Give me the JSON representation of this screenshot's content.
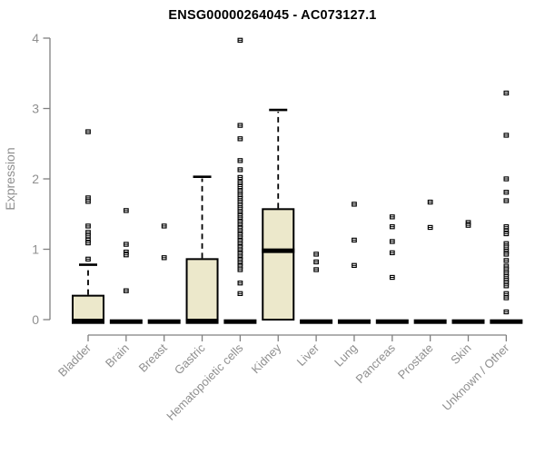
{
  "title": "ENSG00000264045 - AC073127.1",
  "colors": {
    "box_fill": "#ece8cb",
    "box_stroke": "#000000",
    "axis_line": "#808080",
    "tick_text": "#8f8f8f",
    "title_text": "#000000",
    "background": "#ffffff"
  },
  "chart_data": {
    "type": "boxplot",
    "title": "ENSG00000264045 - AC073127.1",
    "xlabel": "",
    "ylabel": "Expression",
    "ylim": [
      0,
      4
    ],
    "yticks": [
      0,
      1,
      2,
      3,
      4
    ],
    "grid": false,
    "legend": "none",
    "box_fill": "#ece8cb",
    "categories": [
      "Bladder",
      "Brain",
      "Breast",
      "Gastric",
      "Hematopoietic cells",
      "Kidney",
      "Liver",
      "Lung",
      "Pancreas",
      "Prostate",
      "Skin",
      "Unknown / Other"
    ],
    "series": [
      {
        "category": "Bladder",
        "box": {
          "low": 0,
          "q1": 0,
          "median": 0,
          "q3": 0.34,
          "high": 0.78
        },
        "outliers": [
          2.67,
          1.73,
          1.68,
          1.33,
          1.24,
          1.19,
          1.13,
          1.09,
          0.86
        ]
      },
      {
        "category": "Brain",
        "box": {
          "low": 0,
          "q1": 0,
          "median": 0,
          "q3": 0,
          "high": 0
        },
        "outliers": [
          1.55,
          1.07,
          0.96,
          0.92,
          0.41
        ]
      },
      {
        "category": "Breast",
        "box": {
          "low": 0,
          "q1": 0,
          "median": 0,
          "q3": 0,
          "high": 0
        },
        "outliers": [
          1.33,
          0.88
        ]
      },
      {
        "category": "Gastric",
        "box": {
          "low": 0,
          "q1": 0,
          "median": 0,
          "q3": 0.86,
          "high": 2.03
        },
        "outliers": []
      },
      {
        "category": "Hematopoietic cells",
        "box": {
          "low": 0,
          "q1": 0,
          "median": 0,
          "q3": 0,
          "high": 0
        },
        "outliers": [
          3.97,
          2.76,
          2.57,
          2.26,
          2.13,
          2.02,
          1.95,
          1.89,
          1.83,
          1.77,
          1.72,
          1.67,
          1.62,
          1.57,
          1.52,
          1.48,
          1.43,
          1.39,
          1.34,
          1.3,
          1.25,
          1.21,
          1.16,
          1.12,
          1.07,
          1.03,
          0.98,
          0.94,
          0.89,
          0.85,
          0.8,
          0.76,
          0.71,
          0.52,
          0.37
        ]
      },
      {
        "category": "Kidney",
        "box": {
          "low": 0,
          "q1": 0,
          "median": 0.98,
          "q3": 1.57,
          "high": 2.98
        },
        "outliers": []
      },
      {
        "category": "Liver",
        "box": {
          "low": 0,
          "q1": 0,
          "median": 0,
          "q3": 0,
          "high": 0
        },
        "outliers": [
          0.93,
          0.82,
          0.71
        ]
      },
      {
        "category": "Lung",
        "box": {
          "low": 0,
          "q1": 0,
          "median": 0,
          "q3": 0,
          "high": 0
        },
        "outliers": [
          1.64,
          1.13,
          0.77
        ]
      },
      {
        "category": "Pancreas",
        "box": {
          "low": 0,
          "q1": 0,
          "median": 0,
          "q3": 0,
          "high": 0
        },
        "outliers": [
          1.46,
          1.32,
          1.11,
          0.95,
          0.6
        ]
      },
      {
        "category": "Prostate",
        "box": {
          "low": 0,
          "q1": 0,
          "median": 0,
          "q3": 0,
          "high": 0
        },
        "outliers": [
          1.67,
          1.31
        ]
      },
      {
        "category": "Skin",
        "box": {
          "low": 0,
          "q1": 0,
          "median": 0,
          "q3": 0,
          "high": 0
        },
        "outliers": [
          1.38,
          1.34
        ]
      },
      {
        "category": "Unknown / Other",
        "box": {
          "low": 0,
          "q1": 0,
          "median": 0,
          "q3": 0,
          "high": 0
        },
        "outliers": [
          3.22,
          2.62,
          2.0,
          1.81,
          1.69,
          1.32,
          1.26,
          1.22,
          1.08,
          1.03,
          0.97,
          0.93,
          0.84,
          0.76,
          0.71,
          0.66,
          0.61,
          0.56,
          0.53,
          0.48,
          0.37,
          0.31,
          0.11
        ]
      }
    ]
  }
}
